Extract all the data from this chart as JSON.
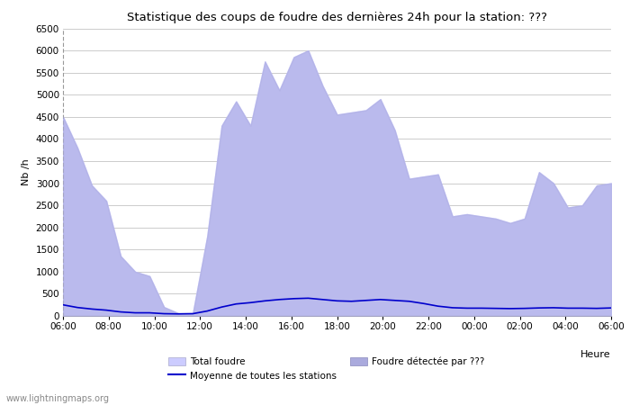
{
  "title": "Statistique des coups de foudre des dernières 24h pour la station: ???",
  "xlabel": "Heure",
  "ylabel": "Nb /h",
  "watermark": "www.lightningmaps.org",
  "xlim_labels": [
    "06:00",
    "08:00",
    "10:00",
    "12:00",
    "14:00",
    "16:00",
    "18:00",
    "20:00",
    "22:00",
    "00:00",
    "02:00",
    "04:00",
    "06:00"
  ],
  "ylim": [
    0,
    6500
  ],
  "yticks": [
    0,
    500,
    1000,
    1500,
    2000,
    2500,
    3000,
    3500,
    4000,
    4500,
    5000,
    5500,
    6000,
    6500
  ],
  "fill_color": "#ccccff",
  "fill_color2": "#aaaadd",
  "moyenne_color": "#0000cc",
  "background_color": "#ffffff",
  "grid_color": "#cccccc",
  "total_foudre": [
    4500,
    3800,
    2950,
    2600,
    1350,
    1000,
    900,
    200,
    60,
    60,
    1800,
    4300,
    4850,
    4300,
    5750,
    5100,
    5850,
    6000,
    5200,
    4550,
    4600,
    4650,
    4900,
    4200,
    3100,
    3150,
    3200,
    2250,
    2300,
    2250,
    2200,
    2100,
    2200,
    3250,
    3000,
    2450,
    2500,
    2950,
    3000
  ],
  "detected_foudre": [
    4500,
    3800,
    2950,
    2600,
    1350,
    1000,
    900,
    200,
    60,
    60,
    1800,
    4300,
    4850,
    4300,
    5750,
    5100,
    5850,
    6000,
    5200,
    4550,
    4600,
    4650,
    4900,
    4200,
    3100,
    3150,
    3200,
    2250,
    2300,
    2250,
    2200,
    2100,
    2200,
    3250,
    3000,
    2450,
    2500,
    2950,
    3000
  ],
  "moyenne": [
    250,
    190,
    155,
    130,
    90,
    70,
    70,
    50,
    45,
    50,
    110,
    200,
    270,
    300,
    340,
    370,
    390,
    400,
    370,
    340,
    330,
    350,
    370,
    350,
    330,
    280,
    220,
    185,
    175,
    175,
    170,
    165,
    170,
    180,
    185,
    175,
    175,
    170,
    180
  ],
  "legend_total": "Total foudre",
  "legend_detected": "Foudre détectée par ???",
  "legend_moyenne": "Moyenne de toutes les stations"
}
